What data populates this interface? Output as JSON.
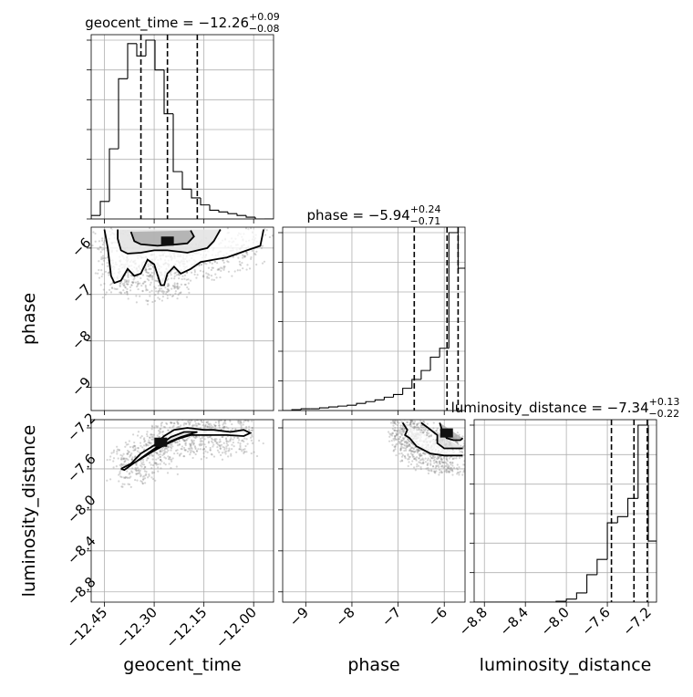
{
  "chart_data": {
    "type": "corner",
    "parameters": [
      "geocent_time",
      "phase",
      "luminosity_distance"
    ],
    "axis_labels": [
      "geocent_time",
      "phase",
      "luminosity_distance"
    ],
    "titles": [
      {
        "param": "geocent_time",
        "median": "−12.26",
        "plus": "+0.09",
        "minus": "−0.08"
      },
      {
        "param": "phase",
        "median": "−5.94",
        "plus": "+0.24",
        "minus": "−0.71"
      },
      {
        "param": "luminosity_distance",
        "median": "−7.34",
        "plus": "+0.13",
        "minus": "−0.22"
      }
    ],
    "ranges": {
      "geocent_time": [
        -12.49,
        -11.94
      ],
      "phase": [
        -9.5,
        -5.55
      ],
      "luminosity_distance": [
        -8.9,
        -7.12
      ]
    },
    "ticks": {
      "geocent_time": {
        "values": [
          -12.45,
          -12.3,
          -12.15,
          -12.0
        ],
        "labels": [
          "−12.45",
          "−12.30",
          "−12.15",
          "−12.00"
        ]
      },
      "phase": {
        "values": [
          -9,
          -8,
          -7,
          -6
        ],
        "labels": [
          "−9",
          "−8",
          "−7",
          "−6"
        ]
      },
      "luminosity_distance": {
        "values": [
          -8.8,
          -8.4,
          -8.0,
          -7.6,
          -7.2
        ],
        "labels": [
          "−8.8",
          "−8.4",
          "−8.0",
          "−7.6",
          "−7.2"
        ]
      }
    },
    "histograms": {
      "geocent_time": {
        "edges": [
          -12.49,
          -12.4625,
          -12.435,
          -12.4075,
          -12.38,
          -12.3525,
          -12.325,
          -12.2975,
          -12.27,
          -12.2425,
          -12.215,
          -12.1875,
          -12.16,
          -12.1325,
          -12.105,
          -12.0775,
          -12.05,
          -12.0225,
          -11.995,
          -11.9675,
          -11.94
        ],
        "counts": [
          2,
          10,
          40,
          80,
          100,
          93,
          102,
          85,
          60,
          27,
          17,
          12,
          8,
          5,
          4,
          3,
          2,
          1,
          0,
          0
        ],
        "quantiles": [
          -12.34,
          -12.26,
          -12.17
        ]
      },
      "phase": {
        "edges": [
          -9.5,
          -9.3,
          -9.1,
          -8.9,
          -8.7,
          -8.5,
          -8.3,
          -8.1,
          -7.9,
          -7.7,
          -7.5,
          -7.3,
          -7.1,
          -6.9,
          -6.7,
          -6.5,
          -6.3,
          -6.1,
          -5.9,
          -5.7,
          -5.55
        ],
        "counts": [
          0,
          1,
          2,
          2,
          3,
          4,
          5,
          6,
          8,
          10,
          12,
          15,
          18,
          25,
          35,
          45,
          60,
          70,
          200,
          160
        ],
        "quantiles": [
          -6.65,
          -5.94,
          -5.7
        ]
      },
      "luminosity_distance": {
        "edges": [
          -8.9,
          -8.8,
          -8.7,
          -8.6,
          -8.5,
          -8.4,
          -8.3,
          -8.2,
          -8.1,
          -8.0,
          -7.9,
          -7.8,
          -7.7,
          -7.6,
          -7.5,
          -7.4,
          -7.3,
          -7.2,
          -7.12
        ],
        "counts": [
          0,
          0,
          0,
          0,
          0,
          0,
          0,
          0,
          0.3,
          1,
          3,
          9,
          14,
          26,
          28,
          34,
          58,
          20
        ],
        "quantiles": [
          -7.56,
          -7.34,
          -7.21
        ]
      }
    },
    "joint": [
      {
        "x": "geocent_time",
        "y": "phase",
        "mode": {
          "x": -12.26,
          "y": -5.85
        },
        "contours": [
          [
            [
              -12.45,
              -5.6
            ],
            [
              -12.44,
              -6.0
            ],
            [
              -12.43,
              -6.6
            ],
            [
              -12.42,
              -6.75
            ],
            [
              -12.4,
              -6.7
            ],
            [
              -12.38,
              -6.45
            ],
            [
              -12.36,
              -6.6
            ],
            [
              -12.34,
              -6.55
            ],
            [
              -12.32,
              -6.25
            ],
            [
              -12.3,
              -6.35
            ],
            [
              -12.28,
              -6.8
            ],
            [
              -12.27,
              -6.8
            ],
            [
              -12.26,
              -6.55
            ],
            [
              -12.24,
              -6.4
            ],
            [
              -12.22,
              -6.55
            ],
            [
              -12.19,
              -6.45
            ],
            [
              -12.16,
              -6.3
            ],
            [
              -12.12,
              -6.25
            ],
            [
              -12.08,
              -6.2
            ],
            [
              -12.02,
              -6.05
            ],
            [
              -11.98,
              -5.95
            ],
            [
              -11.97,
              -5.6
            ]
          ],
          [
            [
              -12.41,
              -5.6
            ],
            [
              -12.41,
              -5.8
            ],
            [
              -12.4,
              -6.05
            ],
            [
              -12.38,
              -6.12
            ],
            [
              -12.34,
              -6.1
            ],
            [
              -12.3,
              -6.05
            ],
            [
              -12.26,
              -6.05
            ],
            [
              -12.2,
              -6.1
            ],
            [
              -12.14,
              -6.0
            ],
            [
              -12.12,
              -5.85
            ],
            [
              -12.1,
              -5.6
            ]
          ],
          [
            [
              -12.37,
              -5.65
            ],
            [
              -12.36,
              -5.85
            ],
            [
              -12.34,
              -5.92
            ],
            [
              -12.29,
              -5.95
            ],
            [
              -12.23,
              -5.92
            ],
            [
              -12.2,
              -5.9
            ],
            [
              -12.18,
              -5.75
            ],
            [
              -12.19,
              -5.62
            ]
          ]
        ]
      },
      {
        "x": "geocent_time",
        "y": "luminosity_distance",
        "mode": {
          "x": -12.28,
          "y": -7.34
        },
        "contours": [
          [
            [
              -12.4,
              -7.6
            ],
            [
              -12.37,
              -7.55
            ],
            [
              -12.34,
              -7.45
            ],
            [
              -12.3,
              -7.37
            ],
            [
              -12.27,
              -7.28
            ],
            [
              -12.24,
              -7.22
            ],
            [
              -12.2,
              -7.2
            ],
            [
              -12.15,
              -7.22
            ],
            [
              -12.12,
              -7.22
            ],
            [
              -12.07,
              -7.24
            ],
            [
              -12.03,
              -7.22
            ],
            [
              -12.01,
              -7.25
            ],
            [
              -12.03,
              -7.28
            ],
            [
              -12.08,
              -7.27
            ],
            [
              -12.13,
              -7.27
            ],
            [
              -12.19,
              -7.27
            ],
            [
              -12.23,
              -7.31
            ],
            [
              -12.27,
              -7.37
            ],
            [
              -12.31,
              -7.44
            ],
            [
              -12.36,
              -7.54
            ],
            [
              -12.39,
              -7.61
            ],
            [
              -12.4,
              -7.6
            ]
          ],
          [
            [
              -12.35,
              -7.52
            ],
            [
              -12.32,
              -7.45
            ],
            [
              -12.28,
              -7.36
            ],
            [
              -12.25,
              -7.29
            ],
            [
              -12.21,
              -7.24
            ],
            [
              -12.17,
              -7.24
            ],
            [
              -12.19,
              -7.26
            ],
            [
              -12.22,
              -7.29
            ],
            [
              -12.25,
              -7.33
            ],
            [
              -12.29,
              -7.4
            ],
            [
              -12.33,
              -7.48
            ],
            [
              -12.35,
              -7.52
            ]
          ]
        ]
      },
      {
        "x": "phase",
        "y": "luminosity_distance",
        "mode": {
          "x": -5.95,
          "y": -7.25
        },
        "contours": [
          [
            [
              -6.9,
              -7.15
            ],
            [
              -6.8,
              -7.22
            ],
            [
              -6.85,
              -7.27
            ],
            [
              -6.75,
              -7.3
            ],
            [
              -6.6,
              -7.38
            ],
            [
              -6.3,
              -7.45
            ],
            [
              -6.0,
              -7.47
            ],
            [
              -5.8,
              -7.47
            ],
            [
              -5.6,
              -7.47
            ]
          ],
          [
            [
              -6.5,
              -7.15
            ],
            [
              -6.35,
              -7.2
            ],
            [
              -6.15,
              -7.27
            ],
            [
              -6.15,
              -7.35
            ],
            [
              -6.0,
              -7.4
            ],
            [
              -5.8,
              -7.4
            ],
            [
              -5.6,
              -7.4
            ]
          ],
          [
            [
              -6.1,
              -7.15
            ],
            [
              -6.05,
              -7.22
            ],
            [
              -5.95,
              -7.3
            ],
            [
              -5.8,
              -7.32
            ],
            [
              -5.65,
              -7.32
            ],
            [
              -5.6,
              -7.3
            ]
          ]
        ]
      }
    ]
  }
}
